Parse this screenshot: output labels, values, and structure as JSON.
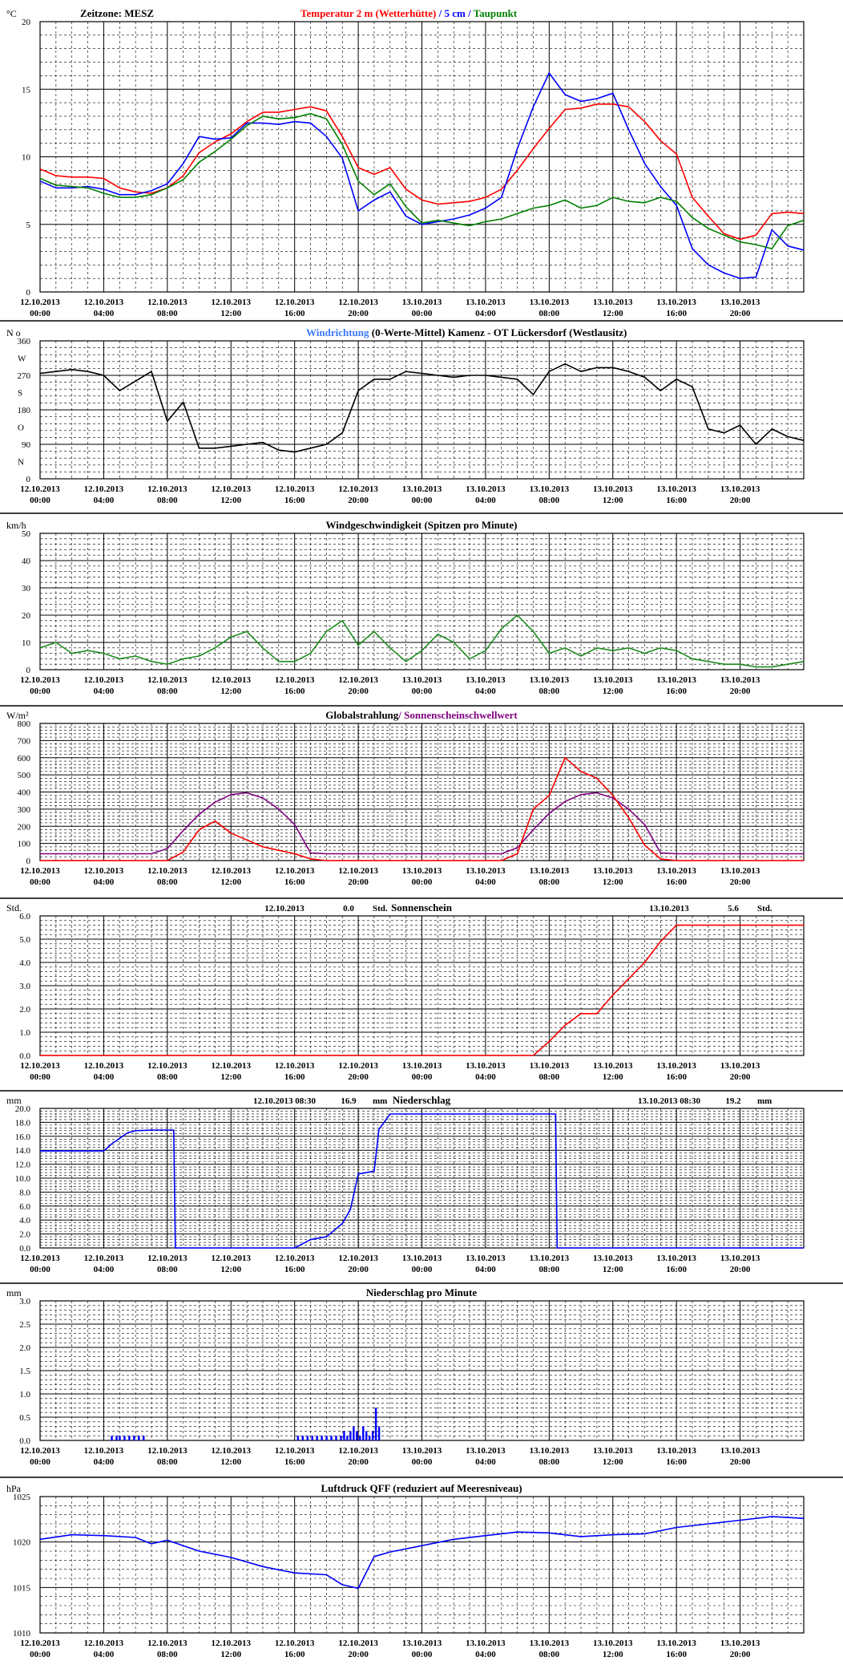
{
  "time_axis": {
    "row1": [
      "12.10.2013",
      "12.10.2013",
      "12.10.2013",
      "12.10.2013",
      "12.10.2013",
      "12.10.2013",
      "13.10.2013",
      "13.10.2013",
      "13.10.2013",
      "13.10.2013",
      "13.10.2013",
      "13.10.2013"
    ],
    "row2": [
      "00:00",
      "04:00",
      "08:00",
      "12:00",
      "16:00",
      "20:00",
      "00:00",
      "04:00",
      "08:00",
      "12:00",
      "16:00",
      "20:00"
    ],
    "range_hours": [
      0,
      48
    ]
  },
  "colors": {
    "red": "#ff0000",
    "blue": "#0000ff",
    "green": "#008000",
    "black": "#000000",
    "purple": "#800080",
    "lightblue": "#3c78ff",
    "darkgreen": "#1e8c1e"
  },
  "chart_data": [
    {
      "id": "temperature",
      "type": "line",
      "unit": "°C",
      "header_left": "Zeitzone: MESZ",
      "title_parts": [
        {
          "text": "Temperatur 2 m (Wetterhütte)",
          "color": "#ff0000"
        },
        {
          "text": "  /  ",
          "color": "#0000ff"
        },
        {
          "text": "5 cm",
          "color": "#0000ff"
        },
        {
          "text": " / ",
          "color": "#0000ff"
        },
        {
          "text": "Taupunkt",
          "color": "#008000"
        }
      ],
      "ylim": [
        0,
        20
      ],
      "yticks": [
        0,
        5,
        10,
        15,
        20
      ],
      "ytick_labels": [
        "0",
        "5",
        "10",
        "15",
        "20"
      ],
      "x_hours": [
        0,
        1,
        2,
        3,
        4,
        5,
        6,
        7,
        8,
        9,
        10,
        11,
        12,
        13,
        14,
        15,
        16,
        17,
        18,
        19,
        20,
        21,
        22,
        23,
        24,
        25,
        26,
        27,
        28,
        29,
        30,
        31,
        32,
        33,
        34,
        35,
        36,
        37,
        38,
        39,
        40,
        41,
        42,
        43,
        44,
        45,
        46,
        47,
        48
      ],
      "series": [
        {
          "color": "#ff0000",
          "values": [
            9.1,
            8.6,
            8.5,
            8.5,
            8.4,
            7.7,
            7.4,
            7.3,
            7.7,
            8.6,
            10.3,
            11.1,
            11.7,
            12.6,
            13.3,
            13.3,
            13.5,
            13.7,
            13.4,
            11.5,
            9.2,
            8.7,
            9.2,
            7.6,
            6.8,
            6.5,
            6.6,
            6.7,
            7.0,
            7.6,
            9.0,
            10.6,
            12.1,
            13.5,
            13.6,
            13.9,
            13.9,
            13.7,
            12.6,
            11.2,
            10.2,
            7.0,
            5.6,
            4.3,
            3.9,
            4.2,
            5.8,
            5.9,
            5.8
          ]
        },
        {
          "color": "#0000ff",
          "values": [
            8.2,
            7.7,
            7.7,
            7.8,
            7.6,
            7.2,
            7.2,
            7.5,
            8.0,
            9.5,
            11.5,
            11.3,
            11.4,
            12.5,
            12.5,
            12.4,
            12.6,
            12.5,
            11.5,
            9.9,
            6.0,
            6.8,
            7.4,
            5.6,
            5.0,
            5.2,
            5.4,
            5.7,
            6.2,
            7.0,
            10.6,
            13.7,
            16.2,
            14.6,
            14.1,
            14.3,
            14.7,
            12.0,
            9.5,
            7.8,
            6.4,
            3.2,
            2.0,
            1.4,
            1.0,
            1.1,
            4.6,
            3.4,
            3.1
          ]
        },
        {
          "color": "#008000",
          "values": [
            8.4,
            7.9,
            7.8,
            7.7,
            7.3,
            7.0,
            7.0,
            7.2,
            7.7,
            8.3,
            9.6,
            10.4,
            11.3,
            12.3,
            13.0,
            12.8,
            12.9,
            13.2,
            12.8,
            10.9,
            8.2,
            7.2,
            8.0,
            6.3,
            5.1,
            5.3,
            5.1,
            4.9,
            5.2,
            5.4,
            5.8,
            6.2,
            6.4,
            6.8,
            6.2,
            6.4,
            7.0,
            6.7,
            6.6,
            7.0,
            6.7,
            5.5,
            4.7,
            4.2,
            3.7,
            3.5,
            3.2,
            4.9,
            5.3
          ]
        }
      ]
    },
    {
      "id": "winddir",
      "type": "line",
      "unit": "N o",
      "title_parts": [
        {
          "text": "Windrichtung",
          "color": "#3c78ff"
        },
        {
          "text": " (0-Werte-Mittel)",
          "color": "#000000"
        },
        {
          "text": "          Kamenz - OT Lückersdorf (Westlausitz)",
          "color": "#000000"
        }
      ],
      "ylim": [
        0,
        360
      ],
      "yticks": [
        0,
        90,
        180,
        270,
        360
      ],
      "ytick_labels": [
        "0",
        "90",
        "180",
        "270",
        "360"
      ],
      "compass_labels": [
        {
          "v": 315,
          "t": "W"
        },
        {
          "v": 225,
          "t": "S"
        },
        {
          "v": 135,
          "t": "O"
        },
        {
          "v": 45,
          "t": "N"
        }
      ],
      "x_hours": [
        0,
        1,
        2,
        3,
        4,
        5,
        6,
        7,
        8,
        9,
        10,
        11,
        12,
        13,
        14,
        15,
        16,
        17,
        18,
        19,
        20,
        21,
        22,
        23,
        24,
        25,
        26,
        27,
        28,
        29,
        30,
        31,
        32,
        33,
        34,
        35,
        36,
        37,
        38,
        39,
        40,
        41,
        42,
        43,
        44,
        45,
        46,
        47,
        48
      ],
      "series": [
        {
          "color": "#000000",
          "values": [
            275,
            280,
            285,
            280,
            270,
            230,
            255,
            280,
            150,
            200,
            80,
            80,
            85,
            90,
            95,
            75,
            70,
            80,
            90,
            120,
            230,
            260,
            260,
            280,
            275,
            270,
            265,
            270,
            270,
            265,
            260,
            220,
            280,
            300,
            280,
            290,
            290,
            280,
            265,
            230,
            260,
            240,
            130,
            120,
            140,
            90,
            130,
            110,
            100
          ]
        }
      ]
    },
    {
      "id": "windspeed",
      "type": "line",
      "unit": "km/h",
      "title_parts": [
        {
          "text": "Windgeschwindigkeit (Spitzen pro Minute)",
          "color": "#000000"
        }
      ],
      "ylim": [
        0,
        50
      ],
      "yticks": [
        0,
        10,
        20,
        30,
        40,
        50
      ],
      "ytick_labels": [
        "0",
        "10",
        "20",
        "30",
        "40",
        "50"
      ],
      "x_hours": [
        0,
        1,
        2,
        3,
        4,
        5,
        6,
        7,
        8,
        9,
        10,
        11,
        12,
        13,
        14,
        15,
        16,
        17,
        18,
        19,
        20,
        21,
        22,
        23,
        24,
        25,
        26,
        27,
        28,
        29,
        30,
        31,
        32,
        33,
        34,
        35,
        36,
        37,
        38,
        39,
        40,
        41,
        42,
        43,
        44,
        45,
        46,
        47,
        48
      ],
      "series": [
        {
          "color": "#1e8c1e",
          "values": [
            8,
            10,
            6,
            7,
            6,
            4,
            5,
            3,
            2,
            4,
            5,
            8,
            12,
            14,
            8,
            3,
            3,
            6,
            14,
            18,
            9,
            14,
            8,
            3,
            7,
            13,
            10,
            4,
            7,
            15,
            20,
            14,
            6,
            8,
            5,
            8,
            7,
            8,
            6,
            8,
            7,
            4,
            3,
            2,
            2,
            1,
            1,
            2,
            3
          ]
        }
      ]
    },
    {
      "id": "radiation",
      "type": "line",
      "unit": "W/m²",
      "title_parts": [
        {
          "text": "Globalstrahlung",
          "color": "#000000"
        },
        {
          "text": "/ Sonnenscheinschwellwert",
          "color": "#800080"
        }
      ],
      "ylim": [
        0,
        800
      ],
      "yticks": [
        0,
        100,
        200,
        300,
        400,
        500,
        600,
        700,
        800
      ],
      "ytick_labels": [
        "0",
        "100",
        "200",
        "300",
        "400",
        "500",
        "600",
        "700",
        "800"
      ],
      "x_hours": [
        0,
        1,
        2,
        3,
        4,
        5,
        6,
        7,
        8,
        9,
        10,
        11,
        12,
        13,
        14,
        15,
        16,
        17,
        18,
        19,
        20,
        21,
        22,
        23,
        24,
        25,
        26,
        27,
        28,
        29,
        30,
        31,
        32,
        33,
        34,
        35,
        36,
        37,
        38,
        39,
        40,
        41,
        42,
        43,
        44,
        45,
        46,
        47,
        48
      ],
      "series": [
        {
          "color": "#800080",
          "values": [
            40,
            40,
            40,
            40,
            40,
            40,
            40,
            40,
            70,
            175,
            270,
            340,
            385,
            395,
            365,
            300,
            210,
            45,
            40,
            40,
            40,
            40,
            40,
            40,
            40,
            40,
            40,
            40,
            40,
            40,
            75,
            180,
            275,
            345,
            385,
            395,
            365,
            300,
            210,
            45,
            40,
            40,
            40,
            40,
            40,
            40,
            40,
            40,
            40
          ]
        },
        {
          "color": "#ff0000",
          "values": [
            0,
            0,
            0,
            0,
            0,
            0,
            0,
            0,
            0,
            50,
            180,
            230,
            160,
            120,
            80,
            60,
            40,
            10,
            0,
            0,
            0,
            0,
            0,
            0,
            0,
            0,
            0,
            0,
            0,
            0,
            40,
            300,
            380,
            600,
            520,
            480,
            380,
            250,
            90,
            10,
            0,
            0,
            0,
            0,
            0,
            0,
            0,
            0,
            0
          ]
        }
      ]
    },
    {
      "id": "sunshine",
      "type": "line",
      "unit": "Std.",
      "title_parts": [
        {
          "text": "Sonnenschein",
          "color": "#000000"
        }
      ],
      "annotations": [
        {
          "date": "12.10.2013",
          "value": "0.0",
          "unit": "Std."
        },
        {
          "date": "13.10.2013",
          "value": "5.6",
          "unit": "Std."
        }
      ],
      "ylim": [
        0,
        6
      ],
      "yticks": [
        0,
        1,
        2,
        3,
        4,
        5,
        6
      ],
      "ytick_labels": [
        "0.0",
        "1.0",
        "2.0",
        "3.0",
        "4.0",
        "5.0",
        "6.0"
      ],
      "x_hours": [
        0,
        31,
        32,
        33,
        34,
        35,
        36,
        37,
        38,
        39,
        40,
        48
      ],
      "series": [
        {
          "color": "#ff0000",
          "values": [
            0,
            0,
            0.6,
            1.3,
            1.8,
            1.8,
            2.6,
            3.3,
            4.0,
            4.9,
            5.6,
            5.6
          ]
        }
      ]
    },
    {
      "id": "precip",
      "type": "line",
      "unit": "mm",
      "title_parts": [
        {
          "text": "Niederschlag",
          "color": "#000000"
        }
      ],
      "annotations": [
        {
          "date": "12.10.2013 08:30",
          "value": "16.9",
          "unit": "mm"
        },
        {
          "date": "13.10.2013 08:30",
          "value": "19.2",
          "unit": "mm"
        }
      ],
      "ylim": [
        0,
        20
      ],
      "yticks": [
        0,
        2,
        4,
        6,
        8,
        10,
        12,
        14,
        16,
        18,
        20
      ],
      "ytick_labels": [
        "0.0",
        "2.0",
        "4.0",
        "6.0",
        "8.0",
        "10.0",
        "12.0",
        "14.0",
        "16.0",
        "18.0",
        "20.0"
      ],
      "x_hours": [
        0,
        4,
        4.5,
        5,
        5.5,
        6,
        7,
        8.4,
        8.5,
        16,
        17,
        18,
        19,
        19.5,
        20,
        21,
        21.3,
        22,
        24,
        30,
        32.4,
        32.5,
        48
      ],
      "series": [
        {
          "color": "#0000ff",
          "values": [
            13.9,
            13.9,
            14.9,
            15.7,
            16.5,
            16.8,
            16.9,
            16.9,
            0,
            0,
            1.2,
            1.6,
            3.5,
            5.5,
            10.6,
            11.0,
            17.0,
            19.2,
            19.2,
            19.2,
            19.2,
            0,
            0
          ]
        }
      ]
    },
    {
      "id": "precip_min",
      "type": "bar",
      "unit": "mm",
      "title_parts": [
        {
          "text": "Niederschlag pro Minute",
          "color": "#000000"
        }
      ],
      "ylim": [
        0,
        3
      ],
      "yticks": [
        0,
        0.5,
        1,
        1.5,
        2,
        2.5,
        3
      ],
      "ytick_labels": [
        "0.0",
        "0.5",
        "1.0",
        "1.5",
        "2.0",
        "2.5",
        "3.0"
      ],
      "bar_x_hours": [
        4.5,
        4.8,
        5.0,
        5.3,
        5.6,
        5.9,
        6.2,
        6.5,
        16.2,
        16.5,
        16.8,
        17.1,
        17.4,
        17.7,
        18.0,
        18.3,
        18.6,
        18.9,
        19.1,
        19.3,
        19.5,
        19.7,
        19.9,
        20.1,
        20.3,
        20.5,
        20.7,
        20.9,
        21.1,
        21.3
      ],
      "series": [
        {
          "color": "#0000ff",
          "values": [
            0.1,
            0.1,
            0.1,
            0.1,
            0.1,
            0.1,
            0.1,
            0.1,
            0.1,
            0.1,
            0.1,
            0.1,
            0.1,
            0.1,
            0.1,
            0.1,
            0.1,
            0.1,
            0.2,
            0.1,
            0.2,
            0.3,
            0.2,
            0.1,
            0.3,
            0.2,
            0.1,
            0.2,
            0.7,
            0.3
          ]
        }
      ]
    },
    {
      "id": "pressure",
      "type": "line",
      "unit": "hPa",
      "title_parts": [
        {
          "text": "Luftdruck QFF (reduziert auf Meeresniveau)",
          "color": "#000000"
        }
      ],
      "ylim": [
        1010,
        1025
      ],
      "yticks": [
        1010,
        1015,
        1020,
        1025
      ],
      "ytick_labels": [
        "1010",
        "1015",
        "1020",
        "1025"
      ],
      "x_hours": [
        0,
        2,
        4,
        6,
        7,
        8,
        9,
        10,
        12,
        14,
        16,
        18,
        19,
        20,
        21,
        22,
        24,
        26,
        28,
        30,
        32,
        34,
        36,
        38,
        40,
        42,
        44,
        46,
        48
      ],
      "series": [
        {
          "color": "#0000ff",
          "values": [
            1020.3,
            1020.8,
            1020.7,
            1020.5,
            1019.8,
            1020.2,
            1019.6,
            1019.0,
            1018.3,
            1017.3,
            1016.6,
            1016.4,
            1015.3,
            1014.9,
            1018.4,
            1018.9,
            1019.6,
            1020.3,
            1020.7,
            1021.1,
            1021.0,
            1020.6,
            1020.8,
            1020.9,
            1021.6,
            1022.0,
            1022.4,
            1022.8,
            1022.6
          ]
        }
      ]
    }
  ]
}
